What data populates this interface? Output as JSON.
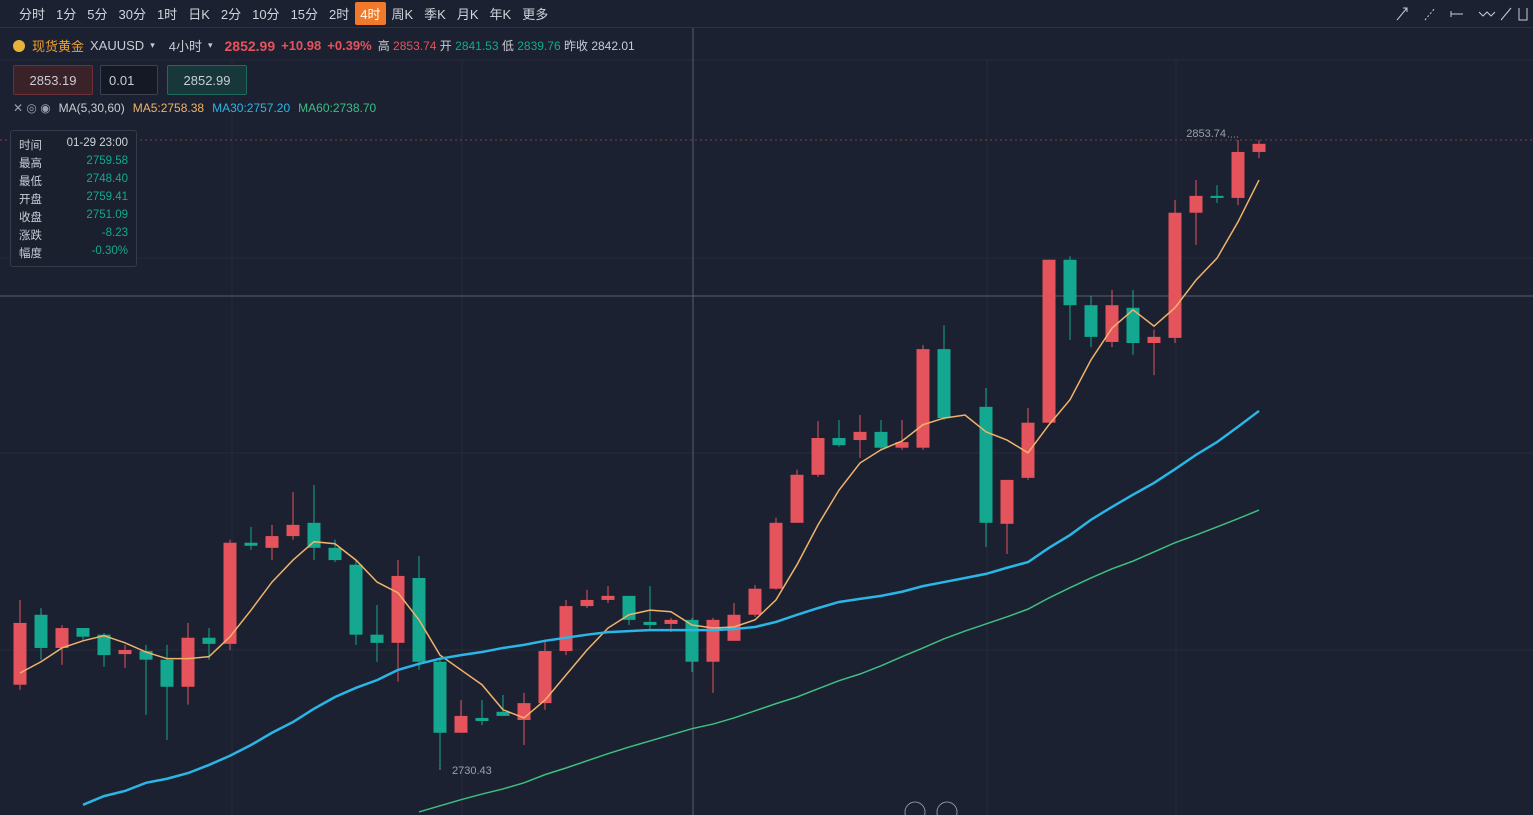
{
  "toolbar": {
    "periods": [
      "分时",
      "1分",
      "5分",
      "30分",
      "1时",
      "日K",
      "2分",
      "10分",
      "15分",
      "2时",
      "4时",
      "周K",
      "季K",
      "月K",
      "年K",
      "更多"
    ],
    "active": 10
  },
  "symbol": {
    "name": "现货黄金",
    "code": "XAUUSD",
    "period": "4小时",
    "price": "2852.99",
    "change": "+10.98",
    "change_pct": "+0.39%",
    "high_label": "高",
    "high": "2853.74",
    "open_label": "开",
    "open": "2841.53",
    "low_label": "低",
    "low": "2839.76",
    "prev_label": "昨收",
    "prev": "2842.01"
  },
  "order": {
    "sell": "2853.19",
    "lots": "0.01",
    "buy": "2852.99"
  },
  "tooltip": {
    "rows": [
      [
        "时间",
        "01-29 23:00"
      ],
      [
        "最高",
        "2759.58"
      ],
      [
        "最低",
        "2748.40"
      ],
      [
        "开盘",
        "2759.41"
      ],
      [
        "收盘",
        "2751.09"
      ],
      [
        "涨跌",
        "-8.23"
      ],
      [
        "幅度",
        "-0.30%"
      ]
    ]
  },
  "chart_data": {
    "type": "candlestick",
    "indicator": "MA(5,30,60)",
    "up_color": "#e5535d",
    "down_color": "#13a88f",
    "ylim": [
      2721.6,
      2869.4
    ],
    "open": [
      2747.1,
      2760.8,
      2754.3,
      2758.2,
      2756.9,
      2753.1,
      2753.7,
      2752.0,
      2746.7,
      2756.3,
      2755.1,
      2774.9,
      2773.9,
      2776.2,
      2778.8,
      2773.9,
      2770.6,
      2756.9,
      2755.3,
      2768.0,
      2751.6,
      2737.7,
      2740.6,
      2741.8,
      2740.2,
      2743.5,
      2753.7,
      2762.5,
      2763.7,
      2764.5,
      2759.4,
      2759.0,
      2759.8,
      2751.6,
      2755.7,
      2760.8,
      2765.9,
      2778.8,
      2788.2,
      2795.4,
      2795.0,
      2796.6,
      2793.5,
      2793.5,
      2812.8,
      null,
      2801.5,
      2778.6,
      2787.6,
      2798.4,
      2830.3,
      2821.4,
      2814.2,
      2820.9,
      2814.0,
      2815.0,
      2839.5,
      2842.8,
      2842.4,
      2851.4
    ],
    "high": [
      2763.7,
      2762.1,
      2758.8,
      2758.2,
      2757.2,
      2754.9,
      2754.9,
      2754.9,
      2759.2,
      2758.2,
      2775.5,
      2778.0,
      2778.4,
      2784.8,
      2786.2,
      2775.5,
      2771.5,
      2762.7,
      2771.5,
      2772.3,
      2752.0,
      2744.1,
      2744.1,
      2745.1,
      2745.5,
      2755.9,
      2763.7,
      2765.7,
      2766.4,
      2764.5,
      2766.4,
      2760.2,
      2760.2,
      2760.2,
      2763.1,
      2766.6,
      2779.8,
      2789.2,
      2798.7,
      2798.9,
      2799.9,
      2798.9,
      2798.9,
      2813.6,
      2817.5,
      null,
      2805.2,
      2787.2,
      2801.3,
      2830.3,
      2831.0,
      2823.2,
      2824.4,
      2824.4,
      2816.6,
      2842.0,
      2845.9,
      2844.9,
      2853.74,
      2853.74
    ],
    "low": [
      2746.1,
      2752.0,
      2751.0,
      2755.9,
      2750.6,
      2750.4,
      2741.2,
      2736.3,
      2743.2,
      2752.0,
      2753.9,
      2773.5,
      2771.5,
      2775.5,
      2771.5,
      2771.1,
      2754.9,
      2751.6,
      2747.7,
      2750.0,
      2730.43,
      2737.7,
      2739.2,
      2741.0,
      2735.3,
      2742.2,
      2752.9,
      2762.1,
      2763.1,
      2758.8,
      2757.6,
      2757.4,
      2749.6,
      2745.5,
      2755.7,
      2760.4,
      2765.7,
      2778.8,
      2787.8,
      2793.7,
      2791.5,
      2793.1,
      2793.1,
      2793.1,
      2798.9,
      null,
      2774.1,
      2772.7,
      2787.2,
      2798.4,
      2814.6,
      2813.2,
      2813.2,
      2811.7,
      2807.7,
      2814.0,
      2833.2,
      2841.4,
      2841.0,
      2850.2
    ],
    "close": [
      2759.2,
      2754.3,
      2758.2,
      2756.5,
      2752.9,
      2753.9,
      2752.0,
      2746.7,
      2756.3,
      2755.1,
      2774.9,
      2774.3,
      2776.2,
      2778.4,
      2773.9,
      2771.5,
      2756.9,
      2755.3,
      2768.4,
      2751.6,
      2737.7,
      2741.0,
      2740.0,
      2741.0,
      2743.5,
      2753.7,
      2762.5,
      2763.7,
      2764.5,
      2759.8,
      2758.8,
      2759.8,
      2751.6,
      2759.8,
      2760.8,
      2765.9,
      2778.8,
      2788.2,
      2795.4,
      2794.0,
      2796.6,
      2793.5,
      2794.6,
      2812.8,
      2799.3,
      null,
      2778.8,
      2787.2,
      2798.4,
      2830.3,
      2821.4,
      2815.2,
      2821.4,
      2814.0,
      2815.2,
      2839.5,
      2842.8,
      2842.4,
      2851.4,
      2852.99
    ],
    "series": [
      {
        "name": "MA5:2758.38",
        "color": "#f0b36b",
        "values": [
          2749.4,
          2751.6,
          2754.3,
          2755.7,
          2756.7,
          2755.3,
          2753.5,
          2752.2,
          2752.2,
          2752.6,
          2756.5,
          2761.7,
          2767.2,
          2771.5,
          2775.1,
          2774.7,
          2771.5,
          2767.2,
          2765.1,
          2759.8,
          2752.9,
          2750.0,
          2747.1,
          2742.2,
          2740.6,
          2744.1,
          2749.0,
          2753.9,
          2758.2,
          2760.8,
          2761.7,
          2761.4,
          2758.8,
          2758.2,
          2758.4,
          2759.8,
          2763.7,
          2770.6,
          2778.4,
          2785.2,
          2790.5,
          2793.1,
          2794.8,
          2798.0,
          2799.3,
          2799.9,
          2796.6,
          2795.0,
          2792.5,
          2798.0,
          2802.9,
          2810.7,
          2816.9,
          2820.5,
          2817.3,
          2820.9,
          2826.3,
          2830.6,
          2837.7,
          2845.9
        ]
      },
      {
        "name": "MA30:2757.20",
        "color": "#2ab6e6",
        "values": [
          null,
          null,
          null,
          2723.6,
          2725.3,
          2726.3,
          2727.9,
          2728.7,
          2729.8,
          2731.4,
          2733.2,
          2735.3,
          2737.7,
          2739.8,
          2742.4,
          2744.7,
          2746.5,
          2748.0,
          2750.0,
          2751.2,
          2752.2,
          2752.9,
          2753.5,
          2754.3,
          2754.9,
          2755.7,
          2756.3,
          2756.9,
          2757.4,
          2757.6,
          2757.8,
          2757.8,
          2757.8,
          2757.8,
          2758.0,
          2758.4,
          2759.4,
          2760.8,
          2762.1,
          2763.3,
          2763.9,
          2764.5,
          2765.3,
          2766.4,
          2767.2,
          2768.0,
          2768.8,
          2770.0,
          2771.1,
          2773.9,
          2776.4,
          2779.4,
          2781.9,
          2784.3,
          2786.6,
          2789.3,
          2792.1,
          2794.6,
          2797.6,
          2800.7
        ]
      },
      {
        "name": "MA60:2738.70",
        "color": "#3dbf84",
        "values": [
          null,
          null,
          null,
          null,
          null,
          null,
          null,
          null,
          null,
          null,
          null,
          null,
          null,
          null,
          null,
          null,
          null,
          null,
          null,
          2722.2,
          2723.4,
          2724.6,
          2725.7,
          2726.7,
          2727.9,
          2729.5,
          2730.8,
          2732.2,
          2733.6,
          2734.9,
          2736.1,
          2737.3,
          2738.5,
          2739.4,
          2740.6,
          2742.0,
          2743.4,
          2744.7,
          2746.3,
          2747.9,
          2749.2,
          2750.8,
          2752.6,
          2754.3,
          2756.1,
          2757.6,
          2759.0,
          2760.4,
          2761.9,
          2764.1,
          2766.1,
          2768.0,
          2769.8,
          2771.3,
          2773.1,
          2774.9,
          2776.4,
          2778.0,
          2779.6,
          2781.3
        ]
      }
    ],
    "high_marker": 2853.74,
    "low_marker": 2730.43
  }
}
